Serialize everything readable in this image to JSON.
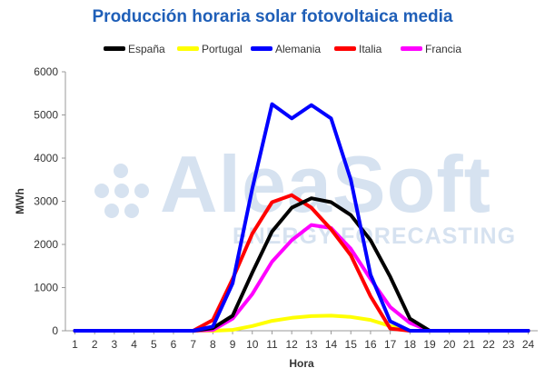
{
  "chart_data": {
    "type": "line",
    "title": "Producción horaria solar fotovoltaica media",
    "xlabel": "Hora",
    "ylabel": "MWh",
    "x": [
      1,
      2,
      3,
      4,
      5,
      6,
      7,
      8,
      9,
      10,
      11,
      12,
      13,
      14,
      15,
      16,
      17,
      18,
      19,
      20,
      21,
      22,
      23,
      24
    ],
    "ylim": [
      0,
      6000
    ],
    "yticks": [
      0,
      1000,
      2000,
      3000,
      4000,
      5000,
      6000
    ],
    "grid": false,
    "legend_position": "top",
    "series": [
      {
        "name": "España",
        "color": "#000000",
        "values": [
          0,
          0,
          0,
          0,
          0,
          0,
          0,
          60,
          350,
          1350,
          2300,
          2850,
          3070,
          2980,
          2680,
          2100,
          1250,
          280,
          0,
          0,
          0,
          0,
          0,
          0
        ]
      },
      {
        "name": "Portugal",
        "color": "#ffff00",
        "values": [
          0,
          0,
          0,
          0,
          0,
          0,
          0,
          0,
          20,
          110,
          230,
          300,
          340,
          350,
          320,
          250,
          110,
          0,
          0,
          0,
          0,
          0,
          0,
          0
        ]
      },
      {
        "name": "Alemania",
        "color": "#0000ff",
        "values": [
          0,
          0,
          0,
          0,
          0,
          0,
          0,
          100,
          1100,
          3300,
          5250,
          4920,
          5230,
          4920,
          3500,
          1300,
          220,
          0,
          0,
          0,
          0,
          0,
          0,
          0
        ]
      },
      {
        "name": "Italia",
        "color": "#ff0000",
        "values": [
          0,
          0,
          0,
          0,
          0,
          0,
          0,
          250,
          1200,
          2250,
          2980,
          3140,
          2850,
          2350,
          1750,
          800,
          50,
          0,
          0,
          0,
          0,
          0,
          0,
          0
        ]
      },
      {
        "name": "Francia",
        "color": "#ff00ff",
        "values": [
          0,
          0,
          0,
          0,
          0,
          0,
          0,
          20,
          280,
          850,
          1600,
          2100,
          2450,
          2380,
          1900,
          1200,
          550,
          180,
          0,
          0,
          0,
          0,
          0,
          0
        ]
      }
    ]
  },
  "watermark": {
    "brand": "AleaSoft",
    "tagline": "ENERGY FORECASTING"
  }
}
